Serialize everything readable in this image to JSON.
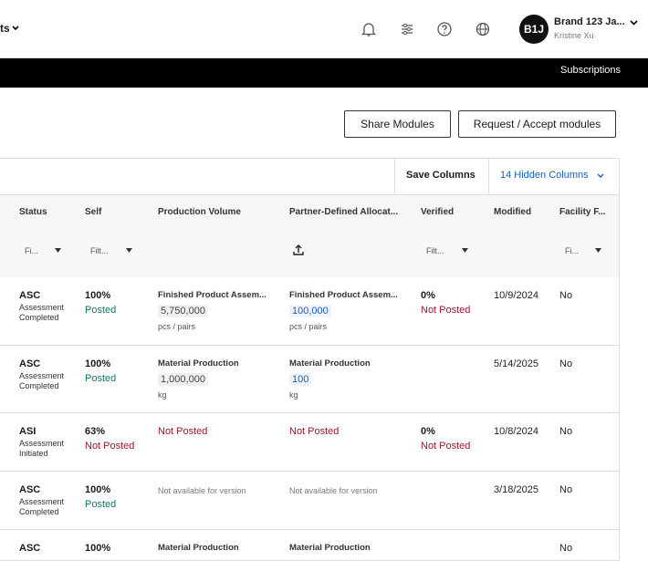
{
  "header": {
    "nav_item": "ts",
    "avatar": "B1J",
    "account_name": "Brand 123 Ja...",
    "user_name": "Kristine Xu"
  },
  "subnav": {
    "link": "Subscriptions"
  },
  "actions": [
    "Share Modules",
    "Request / Accept modules"
  ],
  "toolbar": {
    "save": "Save Columns",
    "hidden": "14 Hidden Columns"
  },
  "table": {
    "columns": [
      "Status",
      "Self",
      "Production Volume",
      "Partner-Defined Allocat...",
      "Verified",
      "Modified",
      "Facility F..."
    ],
    "filters": [
      {
        "col": 0,
        "label": "Fi..."
      },
      {
        "col": 1,
        "label": "Filt..."
      },
      {
        "col": 4,
        "label": "Filt..."
      },
      {
        "col": 6,
        "label": "Fi..."
      }
    ],
    "rows": [
      {
        "status": {
          "code": "ASC",
          "desc": "Assessment Completed"
        },
        "self": {
          "pct": "100%",
          "state": "Posted"
        },
        "production_volume": {
          "label": "Finished Product Assem...",
          "value": "5,750,000",
          "unit": "pcs / pairs"
        },
        "partner_allocation": {
          "label": "Finished Product Assem...",
          "value": "100,000",
          "unit": "pcs / pairs"
        },
        "verified": {
          "pct": "0%",
          "state": "Not Posted"
        },
        "modified": "10/9/2024",
        "facility": "No"
      },
      {
        "status": {
          "code": "ASC",
          "desc": "Assessment Completed"
        },
        "self": {
          "pct": "100%",
          "state": "Posted"
        },
        "production_volume": {
          "label": "Material Production",
          "value": "1,000,000",
          "unit": "kg"
        },
        "partner_allocation": {
          "label": "Material Production",
          "value": "100",
          "unit": "kg"
        },
        "modified": "5/14/2025",
        "facility": "No"
      },
      {
        "status": {
          "code": "ASI",
          "desc": "Assessment Initiated"
        },
        "self": {
          "pct": "63%",
          "state": "Not Posted"
        },
        "production_volume": {
          "state": "Not Posted"
        },
        "partner_allocation": {
          "state": "Not Posted"
        },
        "verified": {
          "pct": "0%",
          "state": "Not Posted"
        },
        "modified": "10/8/2024",
        "facility": "No"
      },
      {
        "status": {
          "code": "ASC",
          "desc": "Assessment Completed"
        },
        "self": {
          "pct": "100%",
          "state": "Posted"
        },
        "production_volume": {
          "note": "Not available for version"
        },
        "partner_allocation": {
          "note": "Not available for version"
        },
        "modified": "3/18/2025",
        "facility": "No"
      },
      {
        "status": {
          "code": "ASC"
        },
        "self": {
          "pct": "100%"
        },
        "production_volume": {
          "label": "Material Production"
        },
        "partner_allocation": {
          "label": "Material Production"
        },
        "facility": "No"
      }
    ]
  }
}
